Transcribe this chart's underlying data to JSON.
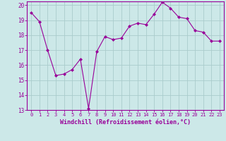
{
  "x": [
    0,
    1,
    2,
    3,
    4,
    5,
    6,
    7,
    8,
    9,
    10,
    11,
    12,
    13,
    14,
    15,
    16,
    17,
    18,
    19,
    20,
    21,
    22,
    23
  ],
  "y": [
    19.5,
    18.9,
    17.0,
    15.3,
    15.4,
    15.7,
    16.4,
    13.1,
    16.9,
    17.9,
    17.7,
    17.8,
    18.6,
    18.8,
    18.7,
    19.4,
    20.2,
    19.8,
    19.2,
    19.1,
    18.3,
    18.2,
    17.6,
    17.6
  ],
  "line_color": "#990099",
  "marker": "D",
  "marker_size": 2,
  "bg_color": "#cce8e8",
  "grid_color": "#aacccc",
  "xlabel": "Windchill (Refroidissement éolien,°C)",
  "ylim": [
    13,
    20
  ],
  "xlim_min": -0.5,
  "xlim_max": 23.5,
  "yticks": [
    13,
    14,
    15,
    16,
    17,
    18,
    19,
    20
  ],
  "xticks": [
    0,
    1,
    2,
    3,
    4,
    5,
    6,
    7,
    8,
    9,
    10,
    11,
    12,
    13,
    14,
    15,
    16,
    17,
    18,
    19,
    20,
    21,
    22,
    23
  ],
  "tick_color": "#990099",
  "label_color": "#990099",
  "spine_color": "#990099"
}
